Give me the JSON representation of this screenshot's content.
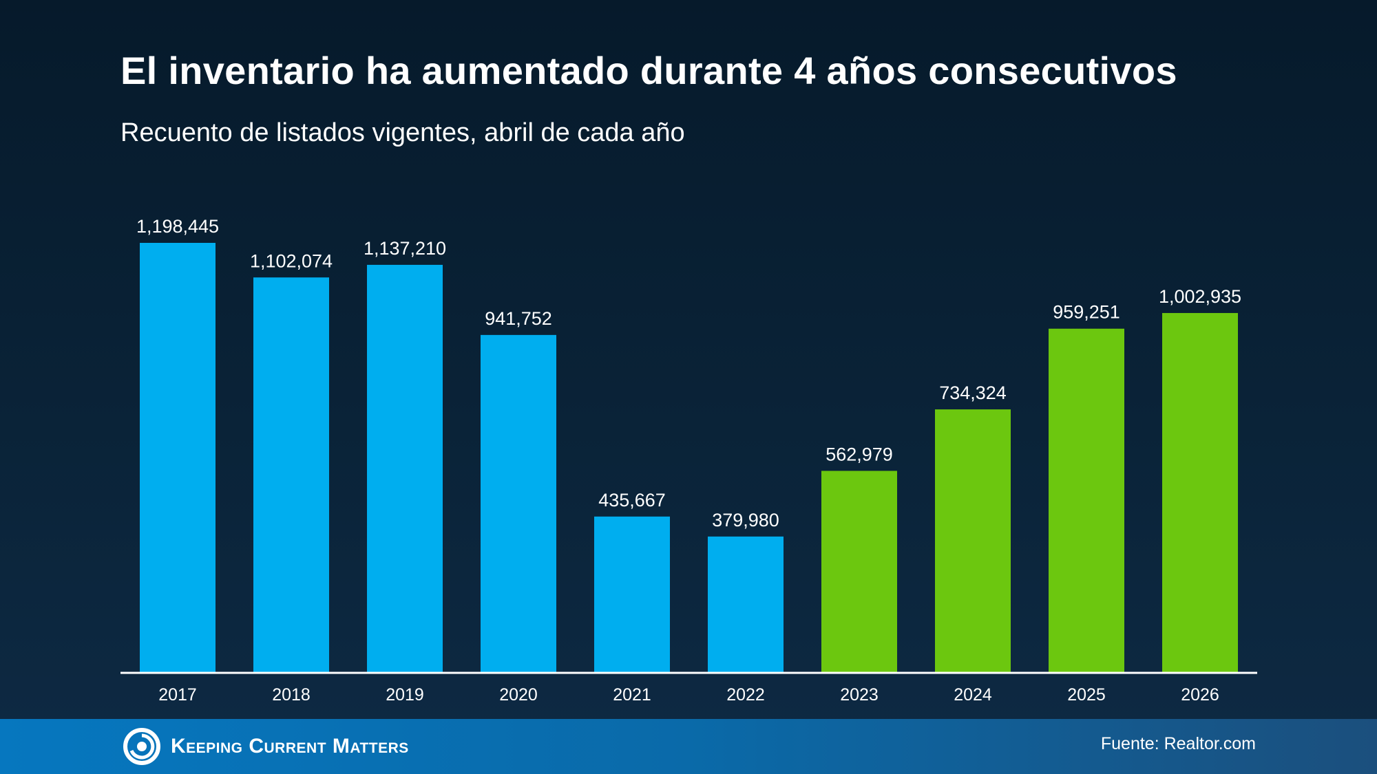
{
  "header": {
    "title": "El inventario ha aumentado durante 4 años consecutivos",
    "subtitle": "Recuento de listados vigentes, abril de cada año"
  },
  "chart_data": {
    "type": "bar",
    "categories": [
      "2017",
      "2018",
      "2019",
      "2020",
      "2021",
      "2022",
      "2023",
      "2024",
      "2025",
      "2026"
    ],
    "values": [
      1198445,
      1102074,
      1137210,
      941752,
      435667,
      379980,
      562979,
      734324,
      959251,
      1002935
    ],
    "value_labels": [
      "1,198,445",
      "1,102,074",
      "1,137,210",
      "941,752",
      "435,667",
      "379,980",
      "562,979",
      "734,324",
      "959,251",
      "1,002,935"
    ],
    "ylim": [
      0,
      1198445
    ],
    "grid": false,
    "colors": {
      "decline": "#00aeef",
      "increase": "#6cc70f",
      "axis": "#ffffff",
      "label": "#ffffff"
    },
    "increase_from_index": 6
  },
  "footer": {
    "brand": "Keeping Current Matters",
    "source": "Fuente: Realtor.com"
  },
  "icons": {
    "logo": "kcm-swirl-icon"
  }
}
